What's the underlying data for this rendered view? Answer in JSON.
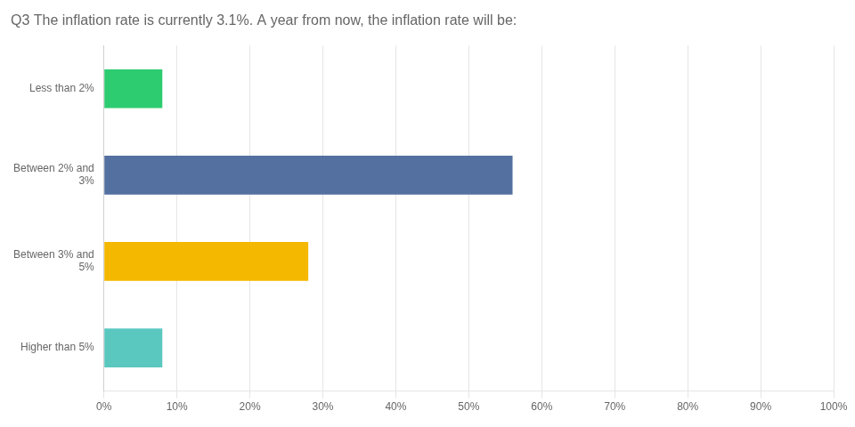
{
  "chart_data": {
    "type": "bar",
    "orientation": "horizontal",
    "title": "Q3 The inflation rate is currently 3.1%. A year from now, the inflation rate will be:",
    "categories": [
      "Less than 2%",
      "Between 2% and\n3%",
      "Between 3% and\n5%",
      "Higher than 5%"
    ],
    "values": [
      8,
      56,
      28,
      8
    ],
    "colors": [
      "#2ecc71",
      "#5470a0",
      "#f5b800",
      "#5bc8c0"
    ],
    "xlim": [
      0,
      100
    ],
    "xticks": [
      {
        "value": 0,
        "label": "0%"
      },
      {
        "value": 10,
        "label": "10%"
      },
      {
        "value": 20,
        "label": "20%"
      },
      {
        "value": 30,
        "label": "30%"
      },
      {
        "value": 40,
        "label": "40%"
      },
      {
        "value": 50,
        "label": "50%"
      },
      {
        "value": 60,
        "label": "60%"
      },
      {
        "value": 70,
        "label": "70%"
      },
      {
        "value": 80,
        "label": "80%"
      },
      {
        "value": 90,
        "label": "90%"
      },
      {
        "value": 100,
        "label": "100%"
      }
    ],
    "grid": true
  }
}
